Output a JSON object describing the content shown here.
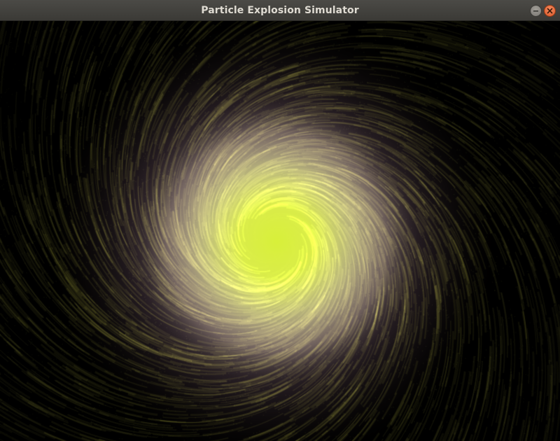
{
  "window": {
    "title": "Particle Explosion Simulator",
    "controls": {
      "minimize_icon": "minimize-icon",
      "close_icon": "close-icon"
    }
  },
  "colors": {
    "titlebar": "#3f3e3a",
    "title_text": "#dfdbd2",
    "close_button": "#e95420",
    "minimize_button": "#8c8a85",
    "background": "#000000",
    "core": "#d8f03a",
    "halo": "#e8d6c8",
    "trail": "#7a7a2a",
    "dust": "#4a4a1a"
  }
}
